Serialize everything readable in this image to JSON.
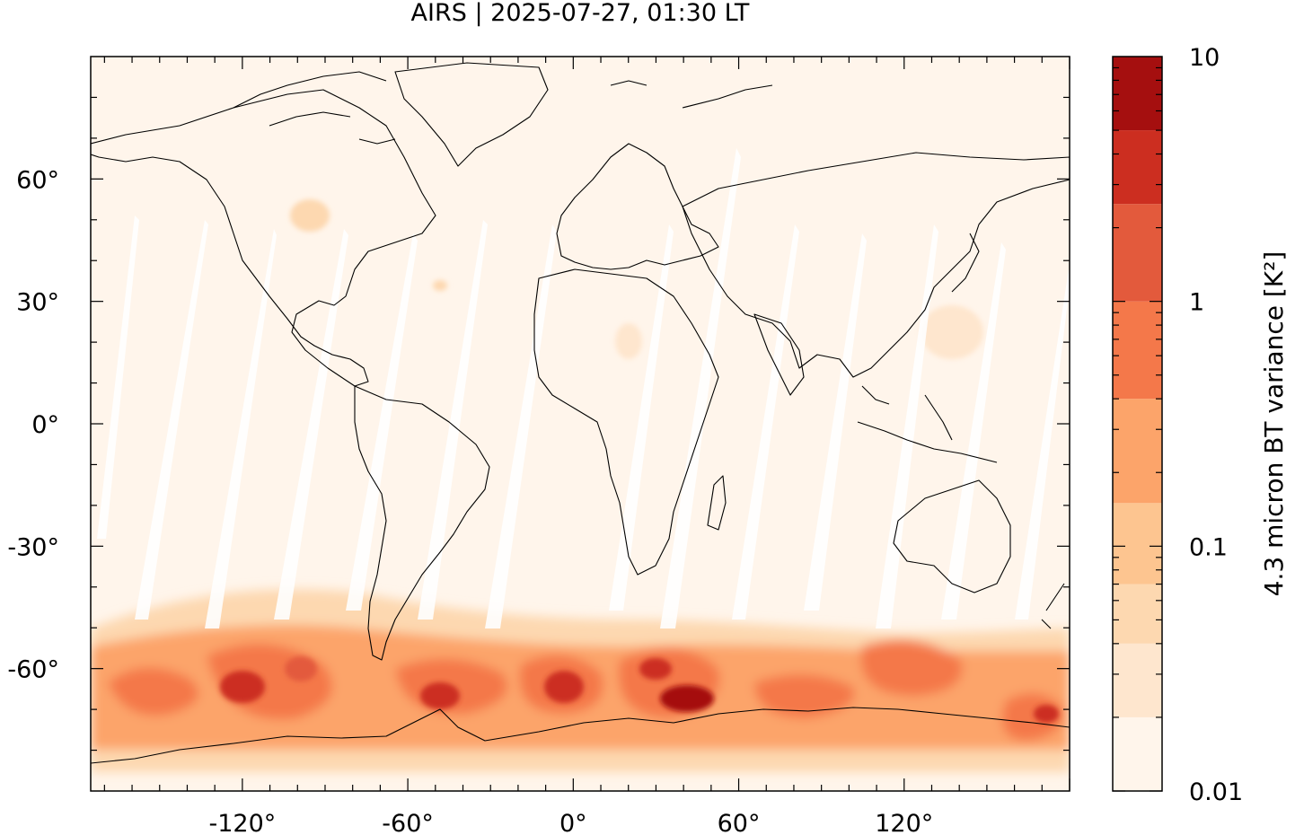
{
  "title": "AIRS | 2025-07-27, 01:30 LT",
  "map": {
    "projection": "plate-carree",
    "lon_range": [
      -175,
      180
    ],
    "lat_range": [
      -90,
      90
    ],
    "lon_ticks": [
      {
        "value": -120,
        "label": "-120°"
      },
      {
        "value": -60,
        "label": "-60°"
      },
      {
        "value": 0,
        "label": "0°"
      },
      {
        "value": 60,
        "label": "60°"
      },
      {
        "value": 120,
        "label": "120°"
      }
    ],
    "lat_ticks": [
      {
        "value": 60,
        "label": "60°"
      },
      {
        "value": 30,
        "label": "30°"
      },
      {
        "value": 0,
        "label": "0°"
      },
      {
        "value": -30,
        "label": "-30°"
      },
      {
        "value": -60,
        "label": "-60°"
      }
    ],
    "background_color": "#fff5eb",
    "coastline_color": "#000000",
    "features": "coastlines; swath gaps (white); elevated variance band over Southern Ocean 45°S–75°S"
  },
  "colorbar": {
    "label": "4.3 micron BT variance [K²]",
    "scale": "log",
    "range": [
      0.01,
      10
    ],
    "tick_labels": [
      {
        "value": 10,
        "label": "10"
      },
      {
        "value": 1,
        "label": "1"
      },
      {
        "value": 0.1,
        "label": "0.1"
      },
      {
        "value": 0.01,
        "label": "0.01"
      }
    ],
    "levels": [
      {
        "lo": 0.01,
        "hi": 0.02,
        "color": "#fff5eb"
      },
      {
        "lo": 0.02,
        "hi": 0.04,
        "color": "#fee6ce"
      },
      {
        "lo": 0.04,
        "hi": 0.07,
        "color": "#fdd8b0"
      },
      {
        "lo": 0.07,
        "hi": 0.15,
        "color": "#fdc590"
      },
      {
        "lo": 0.15,
        "hi": 0.4,
        "color": "#fca46a"
      },
      {
        "lo": 0.4,
        "hi": 1.0,
        "color": "#f4784a"
      },
      {
        "lo": 1.0,
        "hi": 2.5,
        "color": "#e35a3c"
      },
      {
        "lo": 2.5,
        "hi": 5.0,
        "color": "#cc2e20"
      },
      {
        "lo": 5.0,
        "hi": 10,
        "color": "#a50f0f"
      }
    ]
  }
}
